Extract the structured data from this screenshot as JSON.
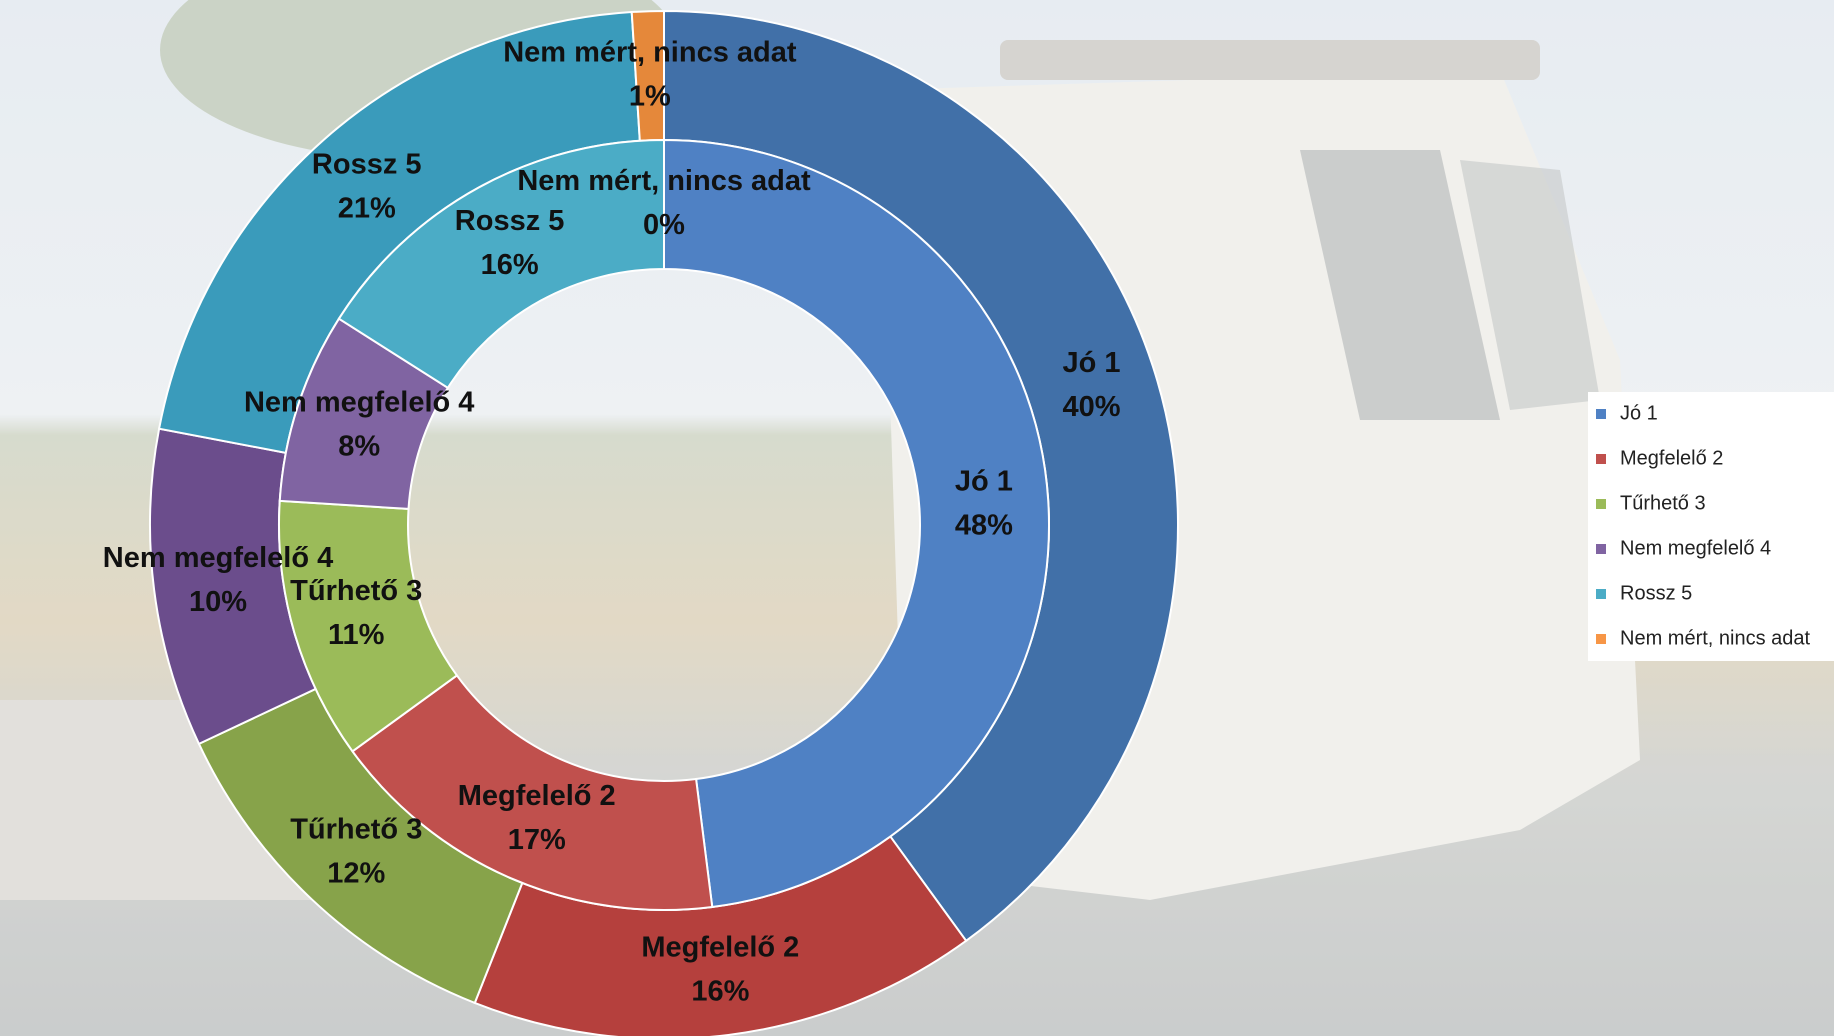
{
  "chart_data": {
    "type": "donut",
    "categories": [
      "Jó 1",
      "Megfelelő 2",
      "Tűrhető 3",
      "Nem megfelelő 4",
      "Rossz 5",
      "Nem mért, nincs adat"
    ],
    "series": [
      {
        "colors": [
          "#4170a8",
          "#b5403d",
          "#87a34a",
          "#6b4d8c",
          "#3a9bbb",
          "#e5883a"
        ],
        "values": [
          40,
          16,
          12,
          10,
          21,
          1
        ],
        "value_labels": [
          "40%",
          "16%",
          "12%",
          "10%",
          "21%",
          "1%"
        ]
      },
      {
        "colors": [
          "#4f81c4",
          "#c0504d",
          "#9bbb59",
          "#8064a2",
          "#4bacc6",
          "#f79646"
        ],
        "values": [
          48,
          17,
          11,
          8,
          16,
          0
        ],
        "value_labels": [
          "48%",
          "17%",
          "11%",
          "8%",
          "16%",
          "0%"
        ]
      }
    ],
    "legend": "right"
  }
}
